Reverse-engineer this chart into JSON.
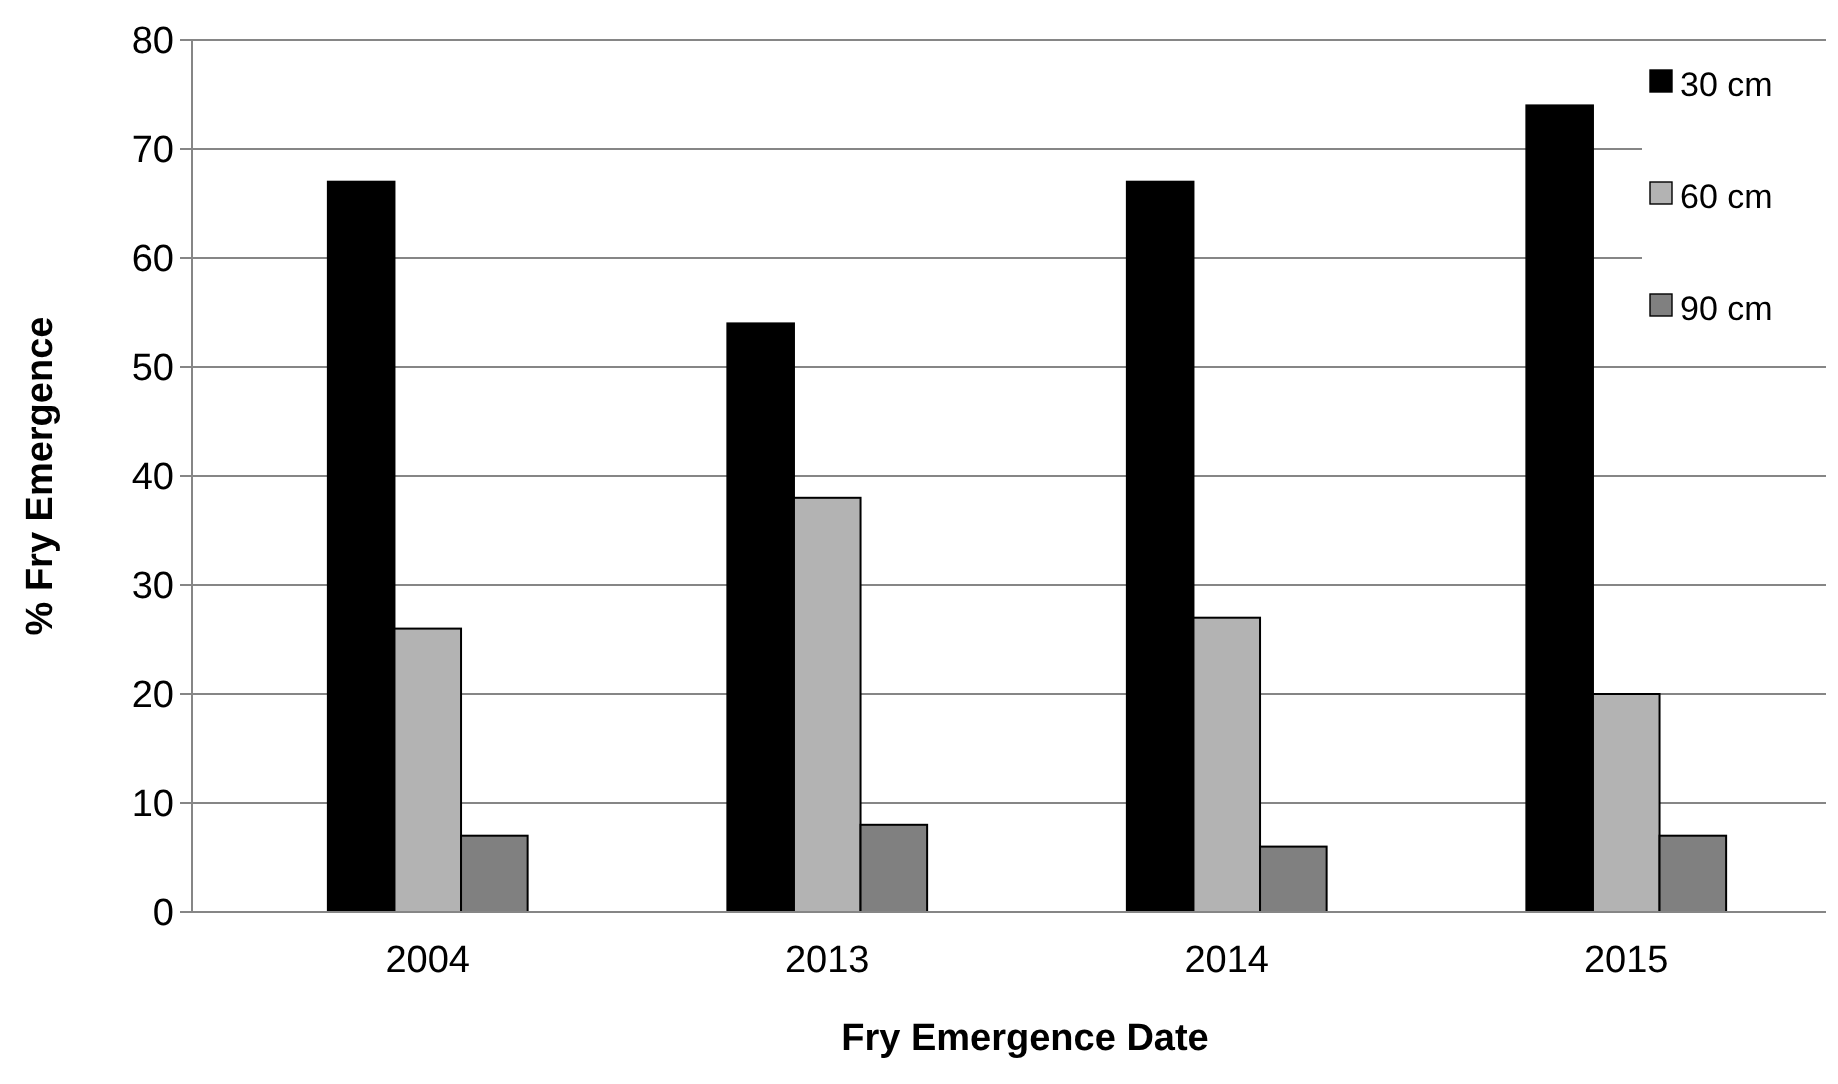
{
  "chart_data": {
    "type": "bar",
    "xlabel": "Fry Emergence Date",
    "ylabel": "% Fry Emergence",
    "categories": [
      "2004",
      "2013",
      "2014",
      "2015"
    ],
    "series": [
      {
        "name": "30 cm",
        "color": "#000000",
        "values": [
          67,
          54,
          67,
          74
        ]
      },
      {
        "name": "60 cm",
        "color": "#b3b3b3",
        "values": [
          26,
          38,
          27,
          20
        ]
      },
      {
        "name": "90 cm",
        "color": "#808080",
        "values": [
          7,
          8,
          6,
          7
        ]
      }
    ],
    "ylim": [
      0,
      80
    ],
    "yticks": [
      0,
      10,
      20,
      30,
      40,
      50,
      60,
      70,
      80
    ],
    "grid": "y",
    "legend": "top right"
  }
}
